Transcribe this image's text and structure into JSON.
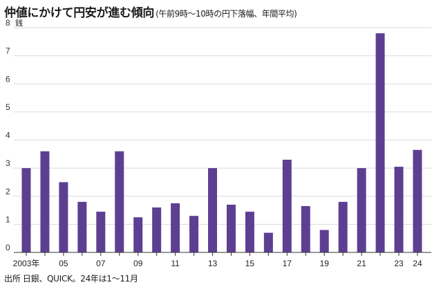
{
  "title": {
    "main": "仲値にかけて円安が進む傾向",
    "sub": "(午前9時〜10時の円下落幅、年間平均)"
  },
  "source": "出所 日銀、QUICK。24年は1〜11月",
  "colors": {
    "bar": "#5d3f92",
    "grid": "#d9d9d9",
    "axis": "#333333"
  },
  "chart_data": {
    "type": "bar",
    "title": "仲値にかけて円安が進む傾向",
    "subtitle": "(午前9時〜10時の円下落幅、年間平均)",
    "ylabel": "銭",
    "xlabel": "",
    "ylim": [
      0,
      8
    ],
    "yticks": [
      0,
      1,
      2,
      3,
      4,
      5,
      6,
      7,
      8
    ],
    "grid": "horizontal",
    "categories": [
      "2003",
      "2004",
      "2005",
      "2006",
      "2007",
      "2008",
      "2009",
      "2010",
      "2011",
      "2012",
      "2013",
      "2014",
      "2015",
      "2016",
      "2017",
      "2018",
      "2019",
      "2020",
      "2021",
      "2022",
      "2023",
      "2024"
    ],
    "values": [
      3.0,
      3.6,
      2.5,
      1.8,
      1.45,
      3.6,
      1.25,
      1.6,
      1.75,
      1.3,
      3.0,
      1.7,
      1.45,
      0.7,
      3.3,
      1.65,
      0.8,
      1.8,
      3.0,
      7.8,
      3.05,
      3.65
    ],
    "xtick_labels": [
      "2003年",
      "",
      "05",
      "",
      "07",
      "",
      "09",
      "",
      "11",
      "",
      "13",
      "",
      "15",
      "",
      "17",
      "",
      "19",
      "",
      "21",
      "",
      "23",
      "24"
    ]
  }
}
